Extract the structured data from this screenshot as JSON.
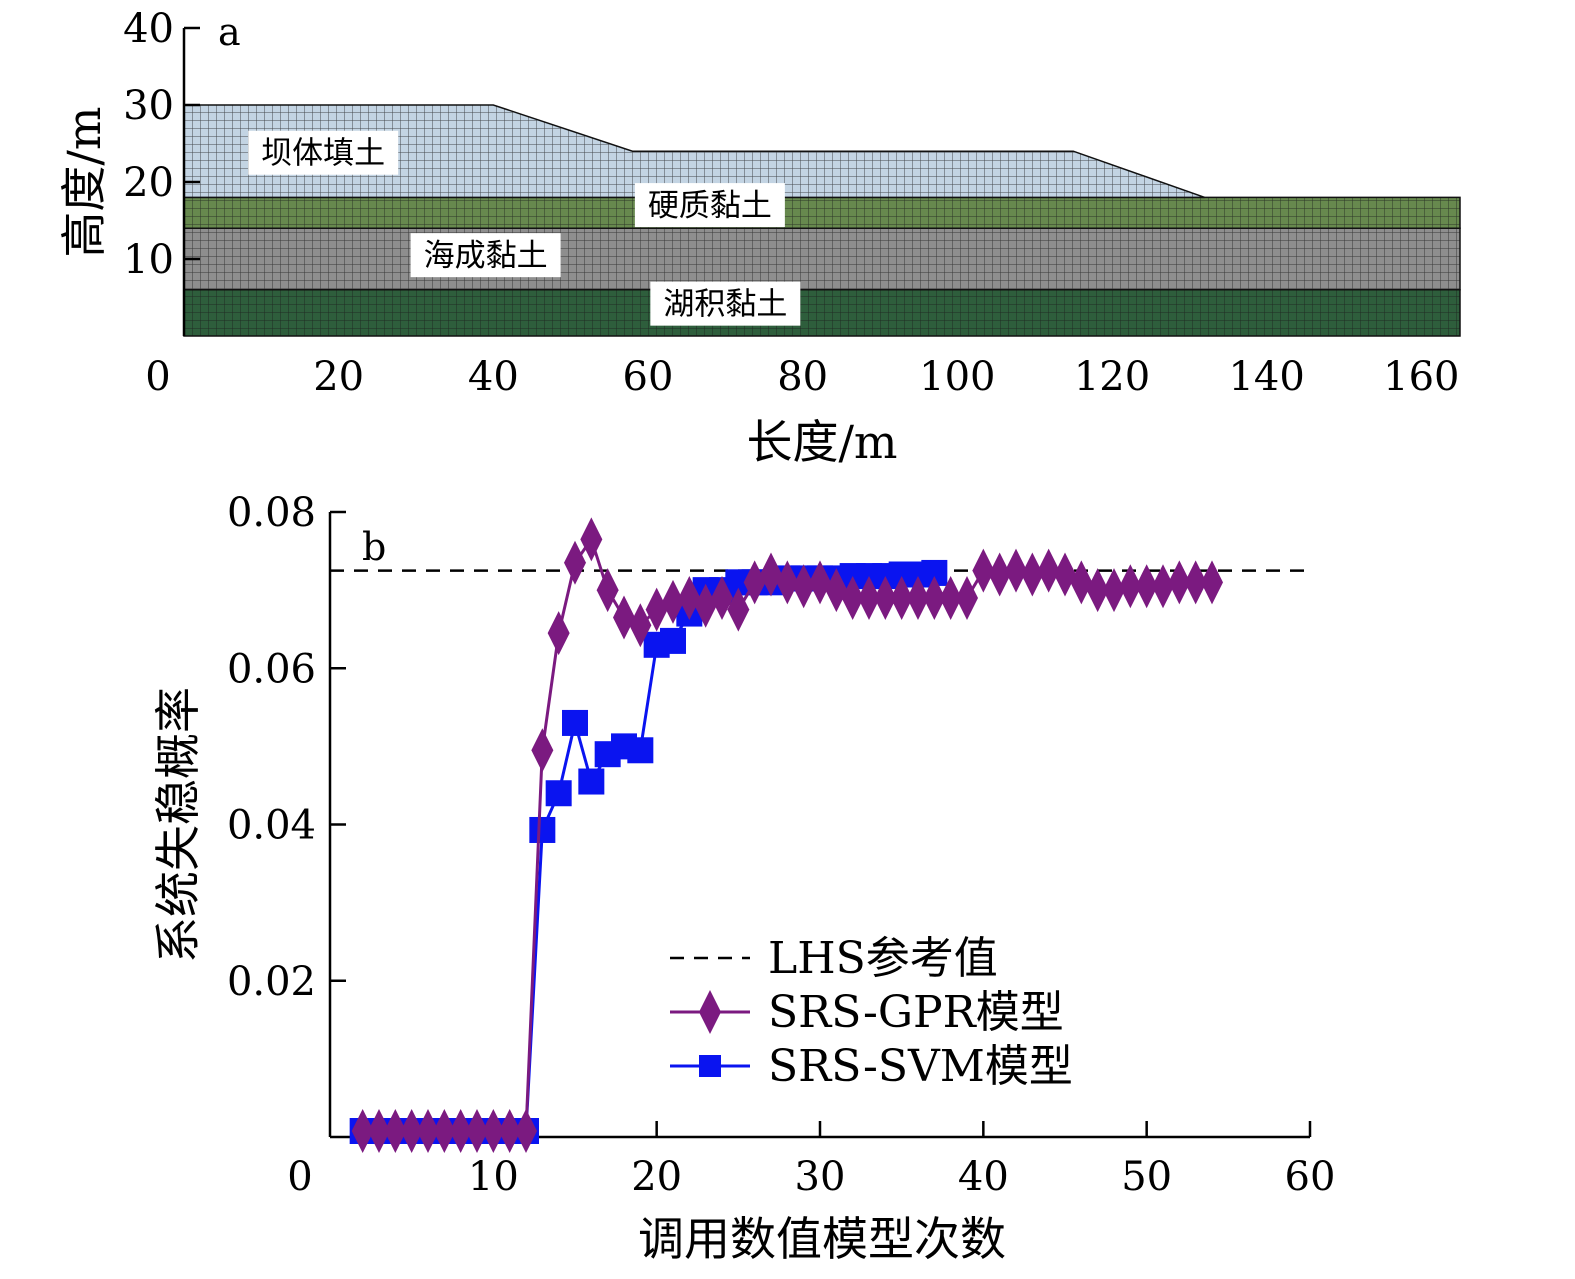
{
  "chart_data": [
    {
      "type": "diagram",
      "panel_label": "a",
      "xlabel": "长度/m",
      "ylabel": "高度/m",
      "xlim": [
        0,
        165
      ],
      "ylim": [
        0,
        40
      ],
      "x_ticks": [
        0,
        20,
        40,
        60,
        80,
        100,
        120,
        140,
        160
      ],
      "y_ticks": [
        10,
        20,
        30,
        40
      ],
      "layers": [
        {
          "name": "湖积黏土",
          "color": "#2e5e3c",
          "label_at": [
            70,
            4.2
          ],
          "polygon": [
            [
              0,
              0
            ],
            [
              165,
              0
            ],
            [
              165,
              6
            ],
            [
              0,
              6
            ]
          ]
        },
        {
          "name": "海成黏土",
          "color": "#8e8e8e",
          "label_at": [
            39,
            10.5
          ],
          "polygon": [
            [
              0,
              6
            ],
            [
              165,
              6
            ],
            [
              165,
              14
            ],
            [
              0,
              14
            ]
          ]
        },
        {
          "name": "硬质黏土",
          "color": "#67894e",
          "label_at": [
            68,
            17
          ],
          "polygon": [
            [
              0,
              14
            ],
            [
              165,
              14
            ],
            [
              165,
              18
            ],
            [
              0,
              18
            ]
          ]
        },
        {
          "name": "坝体填土",
          "color": "#c3d4e3",
          "label_at": [
            18,
            23.8
          ],
          "polygon": [
            [
              0,
              18
            ],
            [
              132,
              18
            ],
            [
              115,
              24
            ],
            [
              58,
              24
            ],
            [
              40,
              30
            ],
            [
              0,
              30
            ]
          ]
        }
      ]
    },
    {
      "type": "line",
      "panel_label": "b",
      "xlabel": "调用数值模型次数",
      "ylabel": "系统失稳概率",
      "xlim": [
        0,
        60
      ],
      "ylim": [
        0,
        0.08
      ],
      "x_ticks": [
        0,
        10,
        20,
        30,
        40,
        50,
        60
      ],
      "y_ticks": [
        "0.02",
        "0.04",
        "0.06",
        "0.08"
      ],
      "reference_line": {
        "name": "LHS参考值",
        "value": 0.0725,
        "style": "dashed",
        "color": "#000000"
      },
      "series": [
        {
          "name": "SRS-GPR模型",
          "color": "#7b1a80",
          "marker": "diamond",
          "x": [
            2,
            3,
            4,
            5,
            6,
            7,
            8,
            9,
            10,
            11,
            12,
            13,
            14,
            15,
            16,
            17,
            18,
            19,
            20,
            21,
            22,
            23,
            24,
            25,
            26,
            27,
            28,
            29,
            30,
            31,
            32,
            33,
            34,
            35,
            36,
            37,
            38,
            39,
            40,
            41,
            42,
            43,
            44,
            45,
            46,
            47,
            48,
            49,
            50,
            51,
            52,
            53,
            54
          ],
          "values": [
            0,
            0,
            0,
            0,
            0,
            0,
            0,
            0,
            0,
            0,
            0,
            0.0495,
            0.0645,
            0.0735,
            0.0765,
            0.07,
            0.0665,
            0.0655,
            0.0675,
            0.0685,
            0.069,
            0.068,
            0.069,
            0.0675,
            0.071,
            0.072,
            0.071,
            0.0705,
            0.071,
            0.07,
            0.069,
            0.069,
            0.069,
            0.069,
            0.069,
            0.069,
            0.069,
            0.069,
            0.0725,
            0.072,
            0.0725,
            0.072,
            0.0725,
            0.072,
            0.071,
            0.07,
            0.07,
            0.0705,
            0.0705,
            0.0705,
            0.071,
            0.071,
            0.071
          ]
        },
        {
          "name": "SRS-SVM模型",
          "color": "#0a14f0",
          "marker": "square",
          "x": [
            2,
            3,
            4,
            5,
            6,
            7,
            8,
            9,
            10,
            11,
            12,
            13,
            14,
            15,
            16,
            17,
            18,
            19,
            20,
            21,
            22,
            23,
            24,
            25,
            26,
            27,
            28,
            29,
            30,
            31,
            32,
            33,
            34,
            35,
            36,
            37
          ],
          "values": [
            0,
            0,
            0,
            0,
            0,
            0,
            0,
            0,
            0,
            0,
            0,
            0.0393,
            0.044,
            0.053,
            0.0455,
            0.049,
            0.05,
            0.0495,
            0.063,
            0.0635,
            0.067,
            0.07,
            0.07,
            0.071,
            0.071,
            0.071,
            0.0715,
            0.0715,
            0.0715,
            0.0715,
            0.0718,
            0.0718,
            0.0718,
            0.072,
            0.072,
            0.0722
          ]
        }
      ],
      "legend": {
        "position": "lower-right"
      }
    }
  ]
}
